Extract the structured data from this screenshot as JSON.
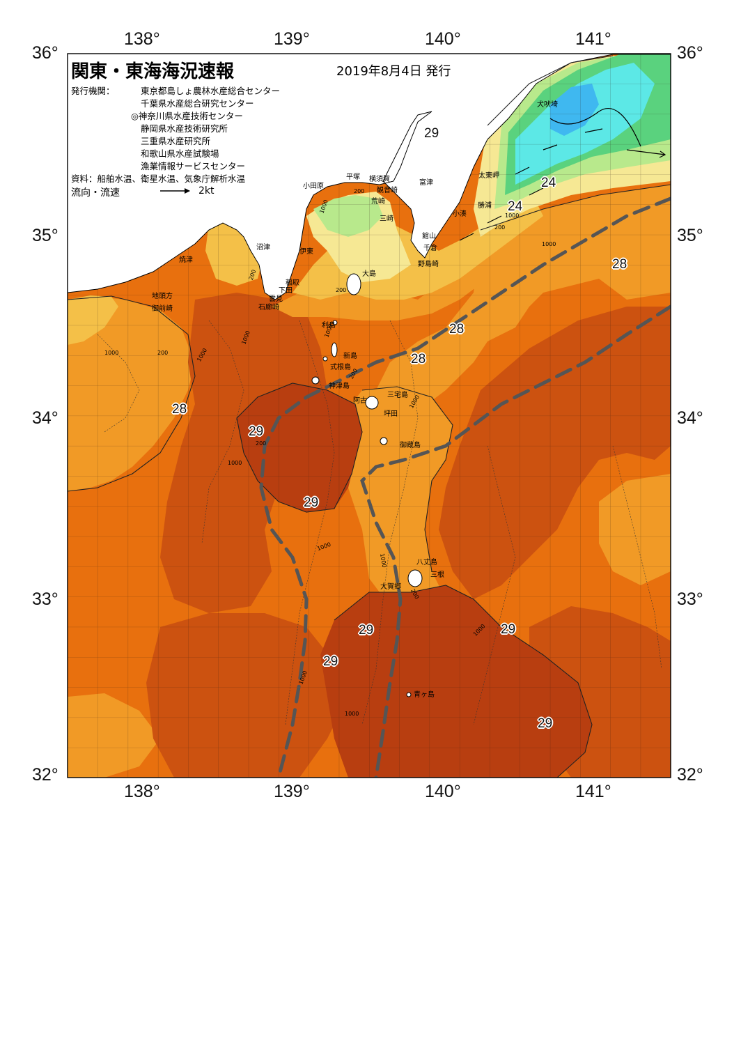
{
  "title": "関東・東海海況速報",
  "issue_date": "2019年8月4日 発行",
  "issuers_label": "発行機関：",
  "issuers": [
    "東京都島しょ農林水産総合センター",
    "千葉県水産総合研究センター",
    "◎神奈川県水産技術センター",
    "静岡県水産技術研究所",
    "三重県水産研究所",
    "和歌山県水産試験場",
    "漁業情報サービスセンター"
  ],
  "sources": "資料：船舶水温、衛星水温、気象庁解析水温",
  "current_legend": {
    "label": "流向・流速",
    "speed": "2kt"
  },
  "axes": {
    "top_lon": [
      "138°",
      "139°",
      "140°",
      "141°"
    ],
    "bottom_lon": [
      "138°",
      "139°",
      "140°",
      "141°"
    ],
    "left_lat": [
      "36°",
      "35°",
      "34°",
      "33°",
      "32°"
    ],
    "right_lat": [
      "36°",
      "35°",
      "34°",
      "33°",
      "32°"
    ]
  },
  "place_names": {
    "inubozaki": "犬吠埼",
    "taitozaki": "太東岬",
    "katsuura": "勝浦",
    "kominato": "小湊",
    "tateyama": "館山",
    "chikura": "千倉",
    "nojimazaki": "野島崎",
    "futtsu": "富津",
    "kannonzaki": "観音崎",
    "yokosuka": "横須賀",
    "hiratsuka": "平塚",
    "odawara": "小田原",
    "arasaki": "荒崎",
    "misaki": "三崎",
    "numazu": "沼津",
    "ito": "伊東",
    "inatori": "稲取",
    "shimoda": "下田",
    "kumomi": "雲見",
    "irozaki": "石廊崎",
    "yaizu": "焼津",
    "chitokata": "地頭方",
    "omaezaki": "御前崎",
    "oshima": "大島",
    "toshima": "利島",
    "niijima": "新島",
    "shikinejima": "式根島",
    "kozushima": "神津島",
    "miyakejima": "三宅島",
    "ako": "阿古",
    "tsubota": "坪田",
    "mikurajima": "御蔵島",
    "hachijojima": "八丈島",
    "mitsune": "三根",
    "okago": "大賀郷",
    "aogashima": "青ヶ島"
  },
  "depth_labels": [
    "1000",
    "200",
    "200",
    "1000",
    "200",
    "1000",
    "1000",
    "200",
    "1000",
    "1000",
    "200",
    "1000",
    "1000",
    "200",
    "1000",
    "1000",
    "1000",
    "1000",
    "200",
    "1000",
    "200",
    "1000"
  ],
  "temperature_labels": [
    "29",
    "24",
    "24",
    "28",
    "28",
    "28",
    "28",
    "29",
    "29",
    "29",
    "29",
    "29",
    "29"
  ],
  "colors": {
    "t29": "#b83e10",
    "t28_5": "#cc5210",
    "t28": "#e8700e",
    "t27": "#f19a26",
    "t26": "#f4c048",
    "t25": "#f6e894",
    "t24": "#b8e98c",
    "t23": "#5ad27e",
    "t22": "#5ce8e6",
    "t21": "#3fb8f0",
    "land": "#ffffff",
    "kuroshio_path": "#555555"
  }
}
